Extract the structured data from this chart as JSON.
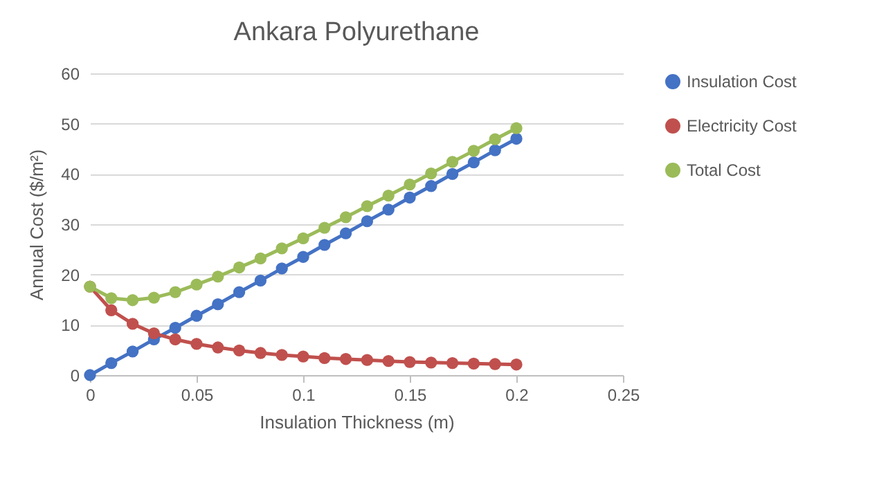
{
  "chart_data": {
    "type": "line",
    "title": "Ankara Polyurethane",
    "xlabel": "Insulation Thickness (m)",
    "ylabel": "Annual Cost ($/m²)",
    "x": [
      0,
      0.01,
      0.02,
      0.03,
      0.04,
      0.05,
      0.06,
      0.07,
      0.08,
      0.09,
      0.1,
      0.11,
      0.12,
      0.13,
      0.14,
      0.15,
      0.16,
      0.17,
      0.18,
      0.19,
      0.2
    ],
    "series": [
      {
        "name": "Insulation Cost",
        "color": "#4472c4",
        "values": [
          0,
          2.4,
          4.7,
          7.1,
          9.4,
          11.8,
          14.1,
          16.5,
          18.8,
          21.2,
          23.5,
          25.9,
          28.2,
          30.6,
          32.9,
          35.3,
          37.6,
          40.0,
          42.3,
          44.7,
          47.0
        ]
      },
      {
        "name": "Electricity Cost",
        "color": "#c0504d",
        "values": [
          17.6,
          12.9,
          10.2,
          8.3,
          7.1,
          6.2,
          5.5,
          4.9,
          4.4,
          4.0,
          3.7,
          3.4,
          3.2,
          3.0,
          2.8,
          2.6,
          2.5,
          2.4,
          2.3,
          2.2,
          2.1
        ]
      },
      {
        "name": "Total Cost",
        "color": "#9bbb59",
        "values": [
          17.6,
          15.3,
          14.9,
          15.4,
          16.5,
          18.0,
          19.6,
          21.4,
          23.2,
          25.2,
          27.2,
          29.3,
          31.4,
          33.6,
          35.7,
          37.9,
          40.1,
          42.4,
          44.6,
          46.9,
          49.1
        ]
      }
    ],
    "xlim": [
      0,
      0.25
    ],
    "xticks": [
      0,
      0.05,
      0.1,
      0.15,
      0.2,
      0.25
    ],
    "ylim": [
      0,
      60
    ],
    "yticks": [
      0,
      10,
      20,
      30,
      40,
      50,
      60
    ],
    "grid": "y",
    "legend": "right",
    "marker": "circle",
    "line_style": "solid"
  }
}
